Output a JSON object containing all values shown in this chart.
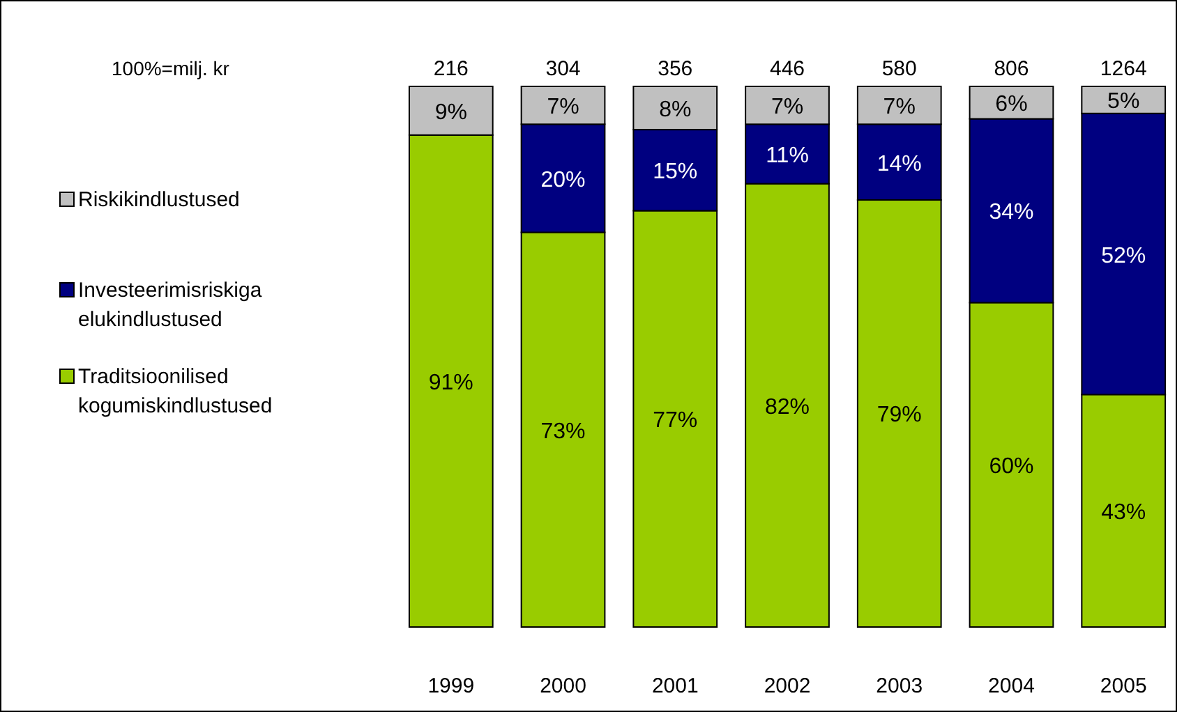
{
  "chart_data": {
    "type": "bar",
    "stacked": true,
    "categories": [
      "1999",
      "2000",
      "2001",
      "2002",
      "2003",
      "2004",
      "2005"
    ],
    "series": [
      {
        "name": "Traditsioonilised kogumiskindlustused",
        "color": "#99cc00",
        "values": [
          91,
          73,
          77,
          82,
          79,
          60,
          43
        ],
        "value_labels": [
          "91%",
          "73%",
          "77%",
          "82%",
          "79%",
          "60%",
          "43%"
        ]
      },
      {
        "name": "Investeerimisriskiga elukindlustused",
        "color": "#000080",
        "values": [
          0,
          20,
          15,
          11,
          14,
          34,
          52
        ],
        "value_labels": [
          null,
          "20%",
          "15%",
          "11%",
          "14%",
          "34%",
          "52%"
        ]
      },
      {
        "name": "Riskikindlustused",
        "color": "#c0c0c0",
        "values": [
          9,
          7,
          8,
          7,
          7,
          6,
          5
        ],
        "value_labels": [
          "9%",
          "7%",
          "8%",
          "7%",
          "7%",
          "6%",
          "5%"
        ]
      }
    ],
    "annotations": [
      "100%=milj. kr",
      {
        "text": "216",
        "x": "1999",
        "y": 100
      },
      {
        "text": "304",
        "x": "2000",
        "y": 100
      },
      {
        "text": "356",
        "x": "2001",
        "y": 100
      },
      {
        "text": "446",
        "x": "2002",
        "y": 100
      },
      {
        "text": "580",
        "x": "2003",
        "y": 100
      },
      {
        "text": "806",
        "x": "2004",
        "y": 100
      },
      {
        "text": "1264",
        "x": "2005",
        "y": 100
      }
    ],
    "legend": "left"
  }
}
